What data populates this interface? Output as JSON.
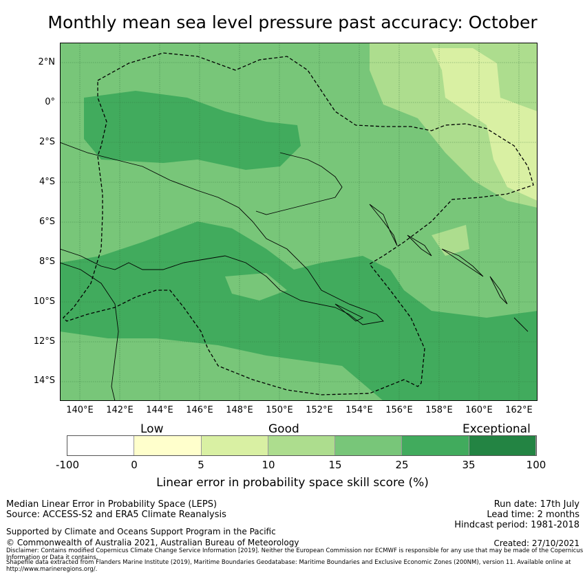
{
  "title": "Monthly mean sea level pressure past accuracy: October",
  "map": {
    "lat_labels": [
      "2°N",
      "0°",
      "2°S",
      "4°S",
      "6°S",
      "8°S",
      "10°S",
      "12°S",
      "14°S"
    ],
    "lon_labels": [
      "140°E",
      "142°E",
      "144°E",
      "146°E",
      "148°E",
      "150°E",
      "152°E",
      "154°E",
      "156°E",
      "158°E",
      "160°E",
      "162°E"
    ],
    "lon_range": [
      139,
      163
    ],
    "lat_range": [
      -15,
      3
    ],
    "colors": {
      "exceptional": "#41ab5d",
      "very_good": "#78c679",
      "good": "#addd8e",
      "fair": "#d9f0a3",
      "low": "#ffffcc",
      "none": "#ffffff",
      "top": "#238443",
      "border_line": "#000000"
    }
  },
  "legend": {
    "band_labels": [
      "Low",
      "Good",
      "Exceptional"
    ],
    "ticks": [
      "-100",
      "0",
      "5",
      "10",
      "15",
      "25",
      "35",
      "100"
    ],
    "segment_colors": [
      "#ffffff",
      "#ffffcc",
      "#d9f0a3",
      "#addd8e",
      "#78c679",
      "#41ab5d",
      "#238443"
    ],
    "caption": "Linear error in probability space skill score (%)"
  },
  "footer": {
    "left1": "Median Linear Error in Probability Space (LEPS)",
    "left2": "Source: ACCESS-S2 and ERA5 Climate Reanalysis",
    "right1": "Run date: 17th July",
    "right2": "Lead time: 2 months",
    "right3": "Hindcast period: 1981-2018",
    "support": "Supported by Climate and Oceans Support Program in the Pacific",
    "copyright": "© Commonwealth of Australia 2021, Australian Bureau of Meteorology",
    "created": "Created: 27/10/2021",
    "disclaimer": "Disclaimer: Contains modified Copernicus Climate Change Service Information [2019]. Neither the European Commission nor ECMWF is responsible for any use that may be made of the Copernicus Information or Data it contains.",
    "shapefile": "Shapefile data extracted from Flanders Marine Institute (2019), Maritime Boundaries Geodatabase: Maritime Boundaries and Exclusive Economic Zones (200NM), version 11. Available online at http://www.marineregions.org/."
  }
}
